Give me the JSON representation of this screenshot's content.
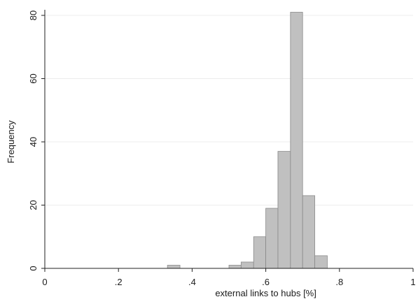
{
  "chart_data": {
    "type": "bar",
    "xlabel": "external links to hubs [%]",
    "ylabel": "Frequency",
    "xlim": [
      0,
      1
    ],
    "ylim": [
      0,
      80
    ],
    "xticks": [
      0,
      0.2,
      0.4,
      0.6,
      0.8,
      1
    ],
    "xtick_labels": [
      "0",
      ".2",
      ".4",
      ".6",
      ".8",
      "1"
    ],
    "yticks": [
      0,
      20,
      40,
      60,
      80
    ],
    "ytick_labels": [
      "0",
      "20",
      "40",
      "60",
      "80"
    ],
    "grid": true,
    "bar_color": "#c0c0c0",
    "bar_edge_color": "#8a8a8a",
    "bin_width": 0.0333,
    "bins": [
      {
        "x0": 0.333,
        "x1": 0.367,
        "count": 1
      },
      {
        "x0": 0.5,
        "x1": 0.533,
        "count": 1
      },
      {
        "x0": 0.533,
        "x1": 0.567,
        "count": 2
      },
      {
        "x0": 0.567,
        "x1": 0.6,
        "count": 10
      },
      {
        "x0": 0.6,
        "x1": 0.633,
        "count": 19
      },
      {
        "x0": 0.633,
        "x1": 0.667,
        "count": 37
      },
      {
        "x0": 0.667,
        "x1": 0.7,
        "count": 81
      },
      {
        "x0": 0.7,
        "x1": 0.733,
        "count": 23
      },
      {
        "x0": 0.733,
        "x1": 0.767,
        "count": 4
      }
    ]
  }
}
